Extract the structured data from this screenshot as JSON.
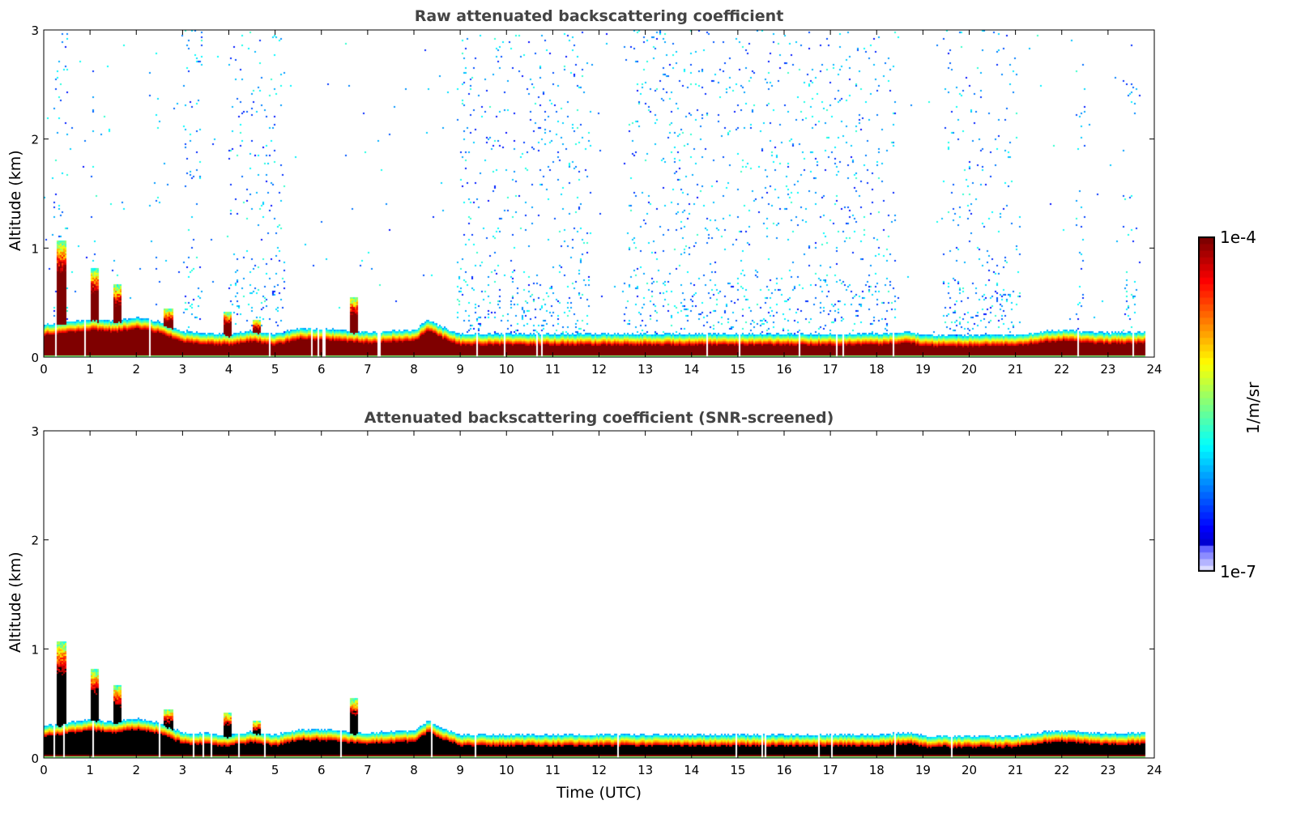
{
  "chart_data": [
    {
      "type": "heatmap",
      "title": "Raw attenuated backscattering coefficient",
      "xlabel": "",
      "ylabel": "Altitude (km)",
      "xlim": [
        0,
        24
      ],
      "ylim": [
        0,
        3
      ],
      "xticks": [
        "0",
        "1",
        "2",
        "3",
        "4",
        "5",
        "6",
        "7",
        "8",
        "9",
        "10",
        "11",
        "12",
        "13",
        "14",
        "15",
        "16",
        "17",
        "18",
        "19",
        "20",
        "21",
        "22",
        "23",
        "24"
      ],
      "yticks": [
        "0",
        "1",
        "2",
        "3"
      ],
      "screened": false
    },
    {
      "type": "heatmap",
      "title": "Attenuated backscattering coefficient (SNR-screened)",
      "xlabel": "Time (UTC)",
      "ylabel": "Altitude (km)",
      "xlim": [
        0,
        24
      ],
      "ylim": [
        0,
        3
      ],
      "xticks": [
        "0",
        "1",
        "2",
        "3",
        "4",
        "5",
        "6",
        "7",
        "8",
        "9",
        "10",
        "11",
        "12",
        "13",
        "14",
        "15",
        "16",
        "17",
        "18",
        "19",
        "20",
        "21",
        "22",
        "23",
        "24"
      ],
      "yticks": [
        "0",
        "1",
        "2",
        "3"
      ],
      "screened": true
    }
  ],
  "boundary_layer_top_km": {
    "time_utc": [
      0,
      0.5,
      1,
      1.5,
      2,
      2.5,
      3,
      3.5,
      4,
      4.5,
      5,
      5.5,
      6,
      6.5,
      7,
      7.5,
      8,
      8.3,
      8.6,
      9,
      10,
      11,
      12,
      13,
      14,
      15,
      16,
      17,
      18,
      18.7,
      19,
      20,
      21,
      21.5,
      22,
      22.5,
      23,
      23.8
    ],
    "height_km": [
      0.31,
      0.33,
      0.36,
      0.34,
      0.37,
      0.33,
      0.24,
      0.23,
      0.22,
      0.25,
      0.22,
      0.27,
      0.27,
      0.25,
      0.24,
      0.25,
      0.26,
      0.35,
      0.28,
      0.22,
      0.22,
      0.22,
      0.22,
      0.22,
      0.22,
      0.22,
      0.22,
      0.22,
      0.22,
      0.24,
      0.21,
      0.21,
      0.21,
      0.24,
      0.26,
      0.24,
      0.23,
      0.24
    ]
  },
  "plumes": [
    {
      "time_utc": 0.37,
      "top_km": 1.08
    },
    {
      "time_utc": 1.08,
      "top_km": 0.82
    },
    {
      "time_utc": 1.58,
      "top_km": 0.67
    },
    {
      "time_utc": 2.68,
      "top_km": 0.45
    },
    {
      "time_utc": 3.95,
      "top_km": 0.42
    },
    {
      "time_utc": 4.6,
      "top_km": 0.35
    },
    {
      "time_utc": 6.7,
      "top_km": 0.55
    }
  ],
  "colorbar": {
    "label": "1/m/sr",
    "max_label": "1e-4",
    "min_label": "1e-7",
    "log_range": [
      -7,
      -4
    ],
    "colormap": "jet"
  }
}
